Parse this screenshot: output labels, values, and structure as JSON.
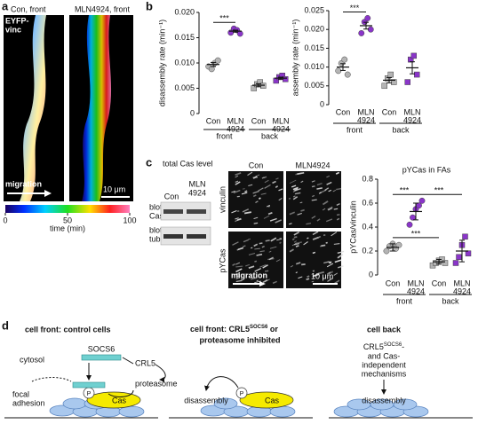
{
  "panel_a": {
    "label": "a",
    "images": [
      "Con, front",
      "MLN4924, front"
    ],
    "channel": [
      "EYFP-",
      "vinc"
    ],
    "arrow": "migration",
    "scale": "10 μm",
    "colorbar": {
      "lim": [
        0,
        100
      ],
      "ticks": [
        0,
        50,
        100
      ],
      "label": "time (min)"
    }
  },
  "panel_b": {
    "label": "b"
  },
  "panel_c": {
    "label": "c",
    "blot_title": "total Cas level",
    "lanes": [
      [
        "Con"
      ],
      [
        "MLN",
        "4924"
      ]
    ],
    "blots": [
      [
        "blot:",
        "Cas"
      ],
      [
        "blot:",
        "tubulin"
      ]
    ],
    "columns": [
      "Con",
      "MLN4924"
    ],
    "rows": [
      "vinculin",
      "pYCas"
    ],
    "arrow": "migration",
    "scale": "10 μm"
  },
  "panel_d": {
    "label": "d",
    "front_control": {
      "title": "cell front: control cells",
      "cytosol": "cytosol",
      "socs6": "SOCS6",
      "crl5": "CRL5",
      "adhesion": [
        "focal",
        "adhesion"
      ],
      "proteasome": "proteasome",
      "p": "P",
      "cas": "Cas"
    },
    "front_inhibited": {
      "title": [
        "cell front: CRL5",
        "SOCS6",
        " or",
        "proteasome inhibited"
      ],
      "disassembly": "disassembly",
      "p": "P",
      "cas": "Cas"
    },
    "back": {
      "title": "cell back",
      "text": [
        "CRL5",
        "SOCS6",
        "-",
        "and Cas-",
        "independent",
        "mechanisms"
      ],
      "disassembly": "disassembly"
    }
  },
  "chart_data": [
    {
      "type": "dot",
      "ylabel": "disassembly rate (min⁻¹)",
      "categories": [
        [
          "Con"
        ],
        [
          "MLN",
          "4924"
        ],
        [
          "Con"
        ],
        [
          "MLN",
          "4924"
        ]
      ],
      "groups": [
        {
          "label": "front",
          "span": [
            0,
            1
          ]
        },
        {
          "label": "back",
          "span": [
            2,
            3
          ]
        }
      ],
      "colors": [
        "#b4b4b4",
        "#8a35c9",
        "#b4b4b4",
        "#8a35c9"
      ],
      "markers": [
        "circle",
        "circle",
        "square",
        "square"
      ],
      "points": [
        [
          0.0093,
          0.0088,
          0.01,
          0.0105
        ],
        [
          0.016,
          0.0168,
          0.0165,
          0.0158
        ],
        [
          0.005,
          0.0058,
          0.0062,
          0.0055
        ],
        [
          0.0065,
          0.0072,
          0.0075,
          0.0068
        ]
      ],
      "means": [
        0.0097,
        0.0163,
        0.0056,
        0.007
      ],
      "sem": [
        0.0004,
        0.0002,
        0.0003,
        0.0002
      ],
      "significance": [
        {
          "label": "***",
          "from": 0,
          "to": 1
        }
      ],
      "ylim": [
        0,
        0.02
      ],
      "yticks": [
        0,
        0.005,
        {
          "value": 0.01,
          "label": "0.010"
        },
        0.015,
        {
          "value": 0.02,
          "label": "0.020"
        }
      ]
    },
    {
      "type": "dot",
      "ylabel": "assembly rate (min⁻¹)",
      "categories": [
        [
          "Con"
        ],
        [
          "MLN",
          "4924"
        ],
        [
          "Con"
        ],
        [
          "MLN",
          "4924"
        ]
      ],
      "groups": [
        {
          "label": "front",
          "span": [
            0,
            1
          ]
        },
        {
          "label": "back",
          "span": [
            2,
            3
          ]
        }
      ],
      "colors": [
        "#b4b4b4",
        "#8a35c9",
        "#b4b4b4",
        "#8a35c9"
      ],
      "markers": [
        "circle",
        "circle",
        "square",
        "square"
      ],
      "points": [
        [
          0.009,
          0.011,
          0.012,
          0.008
        ],
        [
          0.019,
          0.022,
          0.023,
          0.02
        ],
        [
          0.005,
          0.007,
          0.008,
          0.006
        ],
        [
          0.006,
          0.012,
          0.013,
          0.008
        ]
      ],
      "means": [
        0.01,
        0.021,
        0.0065,
        0.0098
      ],
      "sem": [
        0.0009,
        0.0009,
        0.0007,
        0.0016
      ],
      "significance": [
        {
          "label": "***",
          "from": 0,
          "to": 1
        }
      ],
      "ylim": [
        0,
        0.025
      ],
      "yticks": [
        0,
        0.005,
        {
          "value": 0.01,
          "label": "0.010"
        },
        0.015,
        {
          "value": 0.02,
          "label": "0.020"
        },
        0.025
      ]
    },
    {
      "type": "dot",
      "title": "pYCas in FAs",
      "ylabel": "pYCas/vinculin",
      "categories": [
        [
          "Con"
        ],
        [
          "MLN",
          "4924"
        ],
        [
          "Con"
        ],
        [
          "MLN",
          "4924"
        ]
      ],
      "groups": [
        {
          "label": "front",
          "span": [
            0,
            1
          ]
        },
        {
          "label": "back",
          "span": [
            2,
            3
          ]
        }
      ],
      "colors": [
        "#b4b4b4",
        "#8a35c9",
        "#b4b4b4",
        "#8a35c9"
      ],
      "markers": [
        "circle",
        "circle",
        "square",
        "square"
      ],
      "points": [
        [
          0.2,
          0.24,
          0.26,
          0.22,
          0.25
        ],
        [
          0.42,
          0.48,
          0.55,
          0.58,
          0.62
        ],
        [
          0.08,
          0.1,
          0.12,
          0.13,
          0.1
        ],
        [
          0.1,
          0.15,
          0.25,
          0.32,
          0.18
        ]
      ],
      "means": [
        0.23,
        0.53,
        0.11,
        0.2
      ],
      "sem": [
        0.03,
        0.07,
        0.02,
        0.09
      ],
      "significance": [
        {
          "label": "***",
          "from": 0,
          "to": 1
        },
        {
          "label": "***",
          "from": 1,
          "to": 3
        },
        {
          "label": "***",
          "from": 0,
          "to": 2
        }
      ],
      "ylim": [
        0,
        0.8
      ],
      "yticks": [
        0,
        0.2,
        0.4,
        0.6,
        0.8
      ]
    }
  ]
}
